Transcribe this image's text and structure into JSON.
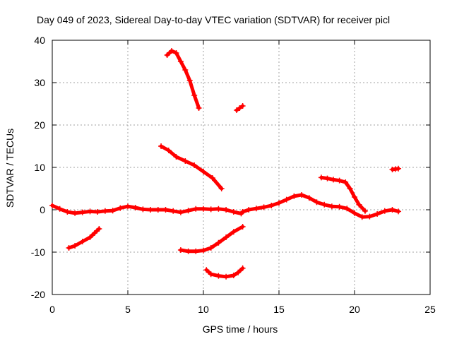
{
  "chart_data": {
    "type": "scatter",
    "title": "Day 049 of 2023, Sidereal Day-to-day VTEC variation (SDTVAR) for receiver picl",
    "xlabel": "GPS time / hours",
    "ylabel": "SDTVAR / TECUs",
    "xlim": [
      0,
      25
    ],
    "ylim": [
      -20,
      40
    ],
    "xticks": [
      0,
      5,
      10,
      15,
      20,
      25
    ],
    "yticks": [
      -20,
      -10,
      0,
      10,
      20,
      30,
      40
    ],
    "xtick_labels": [
      "0",
      "5",
      "10",
      "15",
      "20",
      "25"
    ],
    "ytick_labels": [
      "-20",
      "-10",
      "0",
      "10",
      "20",
      "30",
      "40"
    ],
    "grid": true,
    "legend": "none",
    "series_color": "#ff0000",
    "series": [
      {
        "name": "arc-main",
        "points": [
          [
            0,
            1
          ],
          [
            0.5,
            0.2
          ],
          [
            1,
            -0.5
          ],
          [
            1.5,
            -0.8
          ],
          [
            2,
            -0.6
          ],
          [
            2.5,
            -0.4
          ],
          [
            3,
            -0.5
          ],
          [
            3.5,
            -0.3
          ],
          [
            4,
            -0.2
          ],
          [
            4.5,
            0.4
          ],
          [
            5,
            0.8
          ],
          [
            5.5,
            0.5
          ],
          [
            6,
            0.1
          ],
          [
            6.5,
            0
          ],
          [
            7,
            0
          ],
          [
            7.5,
            0
          ],
          [
            8,
            -0.3
          ],
          [
            8.5,
            -0.6
          ],
          [
            9,
            -0.2
          ],
          [
            9.5,
            0.2
          ],
          [
            10,
            0.2
          ],
          [
            10.5,
            0.1
          ],
          [
            11,
            0.2
          ],
          [
            11.5,
            0
          ],
          [
            12,
            -0.5
          ],
          [
            12.5,
            -0.9
          ]
        ]
      },
      {
        "name": "arc-morning-low",
        "points": [
          [
            1.1,
            -9
          ],
          [
            1.5,
            -8.5
          ],
          [
            2,
            -7.5
          ],
          [
            2.5,
            -6.5
          ],
          [
            2.8,
            -5.5
          ],
          [
            3.1,
            -4.5
          ]
        ]
      },
      {
        "name": "arc-peak",
        "points": [
          [
            7.6,
            36.5
          ],
          [
            7.9,
            37.5
          ],
          [
            8.2,
            37
          ],
          [
            8.5,
            35
          ],
          [
            8.8,
            33
          ],
          [
            9.1,
            30.5
          ],
          [
            9.4,
            27
          ],
          [
            9.7,
            24
          ]
        ]
      },
      {
        "name": "arc-descending",
        "points": [
          [
            7.2,
            15
          ],
          [
            7.7,
            14
          ],
          [
            8.2,
            12.5
          ],
          [
            8.8,
            11.5
          ],
          [
            9.4,
            10.5
          ],
          [
            10,
            9
          ],
          [
            10.6,
            7.5
          ],
          [
            11.2,
            5
          ]
        ]
      },
      {
        "name": "arc-short-high",
        "points": [
          [
            12.2,
            23.5
          ],
          [
            12.4,
            24
          ],
          [
            12.6,
            24.5
          ]
        ]
      },
      {
        "name": "arc-midday-low",
        "points": [
          [
            8.5,
            -9.5
          ],
          [
            9,
            -9.8
          ],
          [
            9.5,
            -9.8
          ],
          [
            10,
            -9.6
          ],
          [
            10.5,
            -9
          ],
          [
            11,
            -7.8
          ],
          [
            11.5,
            -6.5
          ],
          [
            12,
            -5.2
          ],
          [
            12.6,
            -4
          ]
        ]
      },
      {
        "name": "arc-lowest",
        "points": [
          [
            10.2,
            -14.2
          ],
          [
            10.5,
            -15.2
          ],
          [
            11,
            -15.6
          ],
          [
            11.5,
            -15.8
          ],
          [
            12,
            -15.5
          ],
          [
            12.3,
            -14.8
          ],
          [
            12.6,
            -13.8
          ]
        ]
      },
      {
        "name": "arc-afternoon",
        "points": [
          [
            12.6,
            -0.5
          ],
          [
            13,
            0
          ],
          [
            13.5,
            0.3
          ],
          [
            14,
            0.6
          ],
          [
            14.5,
            1
          ],
          [
            15,
            1.6
          ],
          [
            15.5,
            2.4
          ],
          [
            16,
            3.2
          ],
          [
            16.5,
            3.5
          ],
          [
            17,
            2.8
          ],
          [
            17.5,
            1.8
          ],
          [
            18,
            1.2
          ],
          [
            18.5,
            0.8
          ],
          [
            19,
            0.7
          ],
          [
            19.5,
            0.3
          ],
          [
            20,
            -0.8
          ],
          [
            20.5,
            -1.7
          ],
          [
            21,
            -1.6
          ],
          [
            21.5,
            -1
          ],
          [
            22,
            -0.3
          ],
          [
            22.5,
            0
          ],
          [
            22.9,
            -0.4
          ]
        ]
      },
      {
        "name": "arc-evening-high",
        "points": [
          [
            17.8,
            7.6
          ],
          [
            18.2,
            7.4
          ],
          [
            18.6,
            7.1
          ],
          [
            19,
            6.9
          ],
          [
            19.4,
            6.5
          ],
          [
            19.7,
            5
          ],
          [
            20,
            3
          ],
          [
            20.3,
            1.2
          ],
          [
            20.7,
            -0.3
          ]
        ]
      },
      {
        "name": "arc-late-short",
        "points": [
          [
            22.5,
            9.5
          ],
          [
            22.7,
            9.6
          ],
          [
            22.9,
            9.7
          ]
        ]
      }
    ]
  }
}
